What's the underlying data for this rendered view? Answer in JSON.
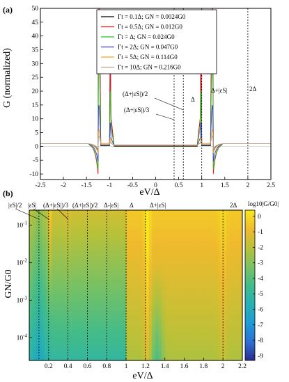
{
  "chart_data": [
    {
      "type": "line",
      "panel": "(a)",
      "xlabel": "eV/Δ",
      "ylabel": "G (normalized)",
      "xlim": [
        -2.5,
        2.5
      ],
      "ylim": [
        -12,
        50
      ],
      "xticks": [
        "-2.5",
        "-2",
        "-1.5",
        "-1",
        "-0.5",
        "0",
        "0.5",
        "1",
        "1.5",
        "2",
        "2.5"
      ],
      "yticks": [
        "-10",
        "-5",
        "0",
        "5",
        "10",
        "15",
        "20",
        "25",
        "30",
        "35",
        "40",
        "45",
        "50"
      ],
      "legend_position": "top-center",
      "legend": [
        {
          "label": "Γt = 0.1Δ; GN = 0.0024G0",
          "color": "#000000"
        },
        {
          "label": "Γt = 0.5Δ; GN = 0.012G0",
          "color": "#e8141c"
        },
        {
          "label": "Γt = Δ; GN = 0.024G0",
          "color": "#22c21e"
        },
        {
          "label": "Γt = 2Δ; GN = 0.047G0",
          "color": "#3a3ad6"
        },
        {
          "label": "Γt = 5Δ; GN = 0.114G0",
          "color": "#f4a21c"
        },
        {
          "label": "Γt = 10Δ; GN = 0.216G0",
          "color": "#b8a090"
        }
      ],
      "series": [
        {
          "name": "Γt = 0.1Δ; GN = 0.0024G0",
          "color": "#000000",
          "peak": 50,
          "dip": -1.5,
          "inner": 0
        },
        {
          "name": "Γt = 0.5Δ; GN = 0.012G0",
          "color": "#e8141c",
          "peak": 50,
          "dip": -10,
          "inner": 0.3
        },
        {
          "name": "Γt = Δ; GN = 0.024G0",
          "color": "#22c21e",
          "peak": 33,
          "dip": -8.5,
          "inner": 0.5
        },
        {
          "name": "Γt = 2Δ; GN = 0.047G0",
          "color": "#3a3ad6",
          "peak": 14,
          "dip": -5.5,
          "inner": 0.8
        },
        {
          "name": "Γt = 5Δ; GN = 0.114G0",
          "color": "#f4a21c",
          "peak": 5,
          "dip": -2.5,
          "inner": 1.5
        },
        {
          "name": "Γt = 10Δ; GN = 0.216G0",
          "color": "#b8a090",
          "peak": 2.8,
          "dip": -1.2,
          "inner": 2.2
        }
      ],
      "vlines": [
        0.4,
        0.6,
        1.0,
        2.0
      ],
      "annotations": [
        {
          "text": "(Δ+|εS|)/2",
          "x": 0.6
        },
        {
          "text": "(Δ+|εS|)/3",
          "x": 0.4
        },
        {
          "text": "Δ",
          "x": 1.0
        },
        {
          "text": "Δ+|εS|",
          "x": 1.2
        },
        {
          "text": "2Δ",
          "x": 2.0
        }
      ]
    },
    {
      "type": "heatmap",
      "panel": "(b)",
      "xlabel": "eV/Δ",
      "ylabel": "GN/G0",
      "xlim": [
        0,
        2.2
      ],
      "ylim_log10": [
        -4.6,
        -0.6
      ],
      "xticks": [
        "0.2",
        "0.4",
        "0.6",
        "0.8",
        "1",
        "1.2",
        "1.4",
        "1.6",
        "1.8",
        "2",
        "2.2"
      ],
      "yticks": [
        "10^-1",
        "10^-2",
        "10^-3",
        "10^-4"
      ],
      "colorbar_label": "log10|G/G0|",
      "colorbar_ticks": [
        "0",
        "-1",
        "-2",
        "-3",
        "-4",
        "-5",
        "-6",
        "-7",
        "-8",
        "-9"
      ],
      "colorbar_range": [
        -9.3,
        0.4
      ],
      "vlines": [
        0.1,
        0.2,
        0.4,
        0.6,
        0.8,
        1.0,
        1.2,
        2.0
      ],
      "top_labels": [
        {
          "text": "|εS|/2",
          "x": 0.1
        },
        {
          "text": "|εS|",
          "x": 0.2
        },
        {
          "text": "(Δ+|εS|)/3",
          "x": 0.4
        },
        {
          "text": "(Δ+|εS|)/2",
          "x": 0.6
        },
        {
          "text": "Δ-|εS|",
          "x": 0.8
        },
        {
          "text": "Δ",
          "x": 1.0
        },
        {
          "text": "Δ+|εS|",
          "x": 1.2
        },
        {
          "text": "2Δ",
          "x": 2.0
        }
      ]
    }
  ]
}
